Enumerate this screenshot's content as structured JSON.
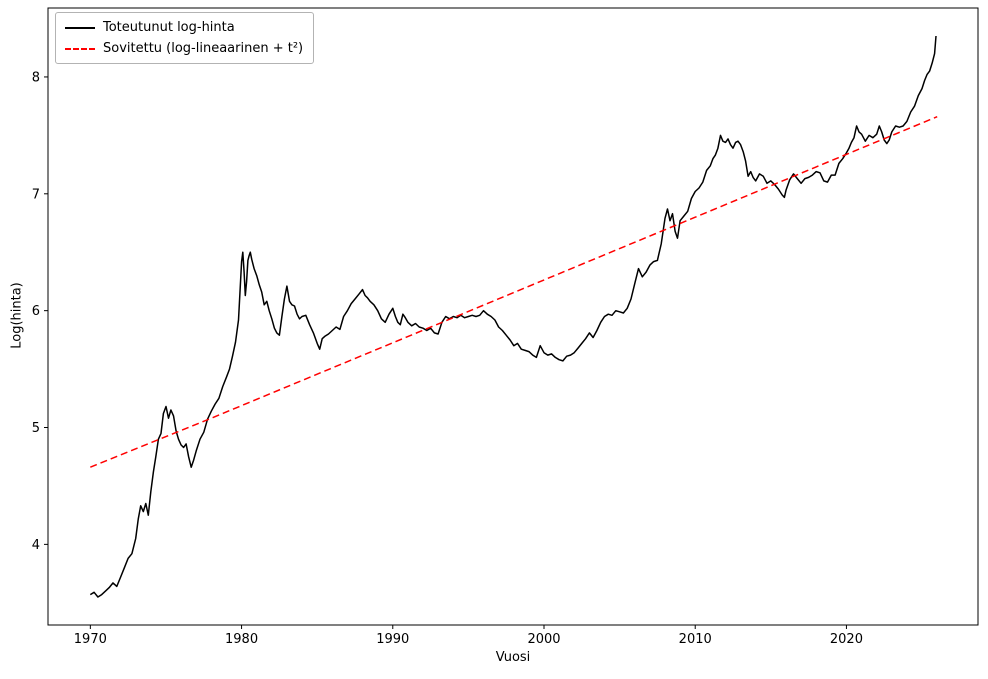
{
  "chart_data": {
    "type": "line",
    "title": "",
    "xlabel": "Vuosi",
    "ylabel": "Log(hinta)",
    "grid": false,
    "legend_position": "upper left",
    "xlim": [
      1967.2,
      2028.7
    ],
    "ylim": [
      3.31,
      8.59
    ],
    "x_ticks": [
      1970,
      1980,
      1990,
      2000,
      2010,
      2020
    ],
    "y_ticks": [
      4,
      5,
      6,
      7,
      8
    ],
    "series": [
      {
        "name": "Toteutunut log-hinta",
        "color": "#000000",
        "linestyle": "solid",
        "points": [
          [
            1970.0,
            3.57
          ],
          [
            1970.25,
            3.59
          ],
          [
            1970.5,
            3.55
          ],
          [
            1970.75,
            3.57
          ],
          [
            1971.0,
            3.6
          ],
          [
            1971.25,
            3.63
          ],
          [
            1971.5,
            3.67
          ],
          [
            1971.75,
            3.64
          ],
          [
            1972.0,
            3.72
          ],
          [
            1972.25,
            3.8
          ],
          [
            1972.5,
            3.88
          ],
          [
            1972.75,
            3.92
          ],
          [
            1973.0,
            4.05
          ],
          [
            1973.17,
            4.22
          ],
          [
            1973.33,
            4.33
          ],
          [
            1973.5,
            4.28
          ],
          [
            1973.67,
            4.35
          ],
          [
            1973.83,
            4.25
          ],
          [
            1974.0,
            4.45
          ],
          [
            1974.17,
            4.62
          ],
          [
            1974.33,
            4.75
          ],
          [
            1974.5,
            4.9
          ],
          [
            1974.67,
            4.95
          ],
          [
            1974.83,
            5.12
          ],
          [
            1975.0,
            5.18
          ],
          [
            1975.17,
            5.08
          ],
          [
            1975.33,
            5.15
          ],
          [
            1975.5,
            5.1
          ],
          [
            1975.67,
            4.97
          ],
          [
            1975.83,
            4.9
          ],
          [
            1976.0,
            4.85
          ],
          [
            1976.17,
            4.83
          ],
          [
            1976.33,
            4.86
          ],
          [
            1976.5,
            4.75
          ],
          [
            1976.67,
            4.66
          ],
          [
            1976.83,
            4.72
          ],
          [
            1977.0,
            4.8
          ],
          [
            1977.25,
            4.9
          ],
          [
            1977.5,
            4.96
          ],
          [
            1977.75,
            5.07
          ],
          [
            1978.0,
            5.14
          ],
          [
            1978.25,
            5.2
          ],
          [
            1978.5,
            5.25
          ],
          [
            1978.75,
            5.35
          ],
          [
            1979.0,
            5.43
          ],
          [
            1979.2,
            5.5
          ],
          [
            1979.4,
            5.61
          ],
          [
            1979.6,
            5.73
          ],
          [
            1979.8,
            5.92
          ],
          [
            1980.0,
            6.42
          ],
          [
            1980.08,
            6.5
          ],
          [
            1980.17,
            6.33
          ],
          [
            1980.25,
            6.13
          ],
          [
            1980.33,
            6.25
          ],
          [
            1980.42,
            6.43
          ],
          [
            1980.5,
            6.47
          ],
          [
            1980.58,
            6.5
          ],
          [
            1980.67,
            6.44
          ],
          [
            1980.75,
            6.4
          ],
          [
            1980.83,
            6.36
          ],
          [
            1981.0,
            6.3
          ],
          [
            1981.17,
            6.22
          ],
          [
            1981.33,
            6.16
          ],
          [
            1981.5,
            6.05
          ],
          [
            1981.67,
            6.08
          ],
          [
            1981.83,
            6.0
          ],
          [
            1982.0,
            5.93
          ],
          [
            1982.17,
            5.85
          ],
          [
            1982.33,
            5.81
          ],
          [
            1982.5,
            5.79
          ],
          [
            1982.67,
            5.95
          ],
          [
            1982.83,
            6.1
          ],
          [
            1983.0,
            6.21
          ],
          [
            1983.17,
            6.08
          ],
          [
            1983.33,
            6.05
          ],
          [
            1983.5,
            6.04
          ],
          [
            1983.67,
            5.97
          ],
          [
            1983.83,
            5.93
          ],
          [
            1984.0,
            5.95
          ],
          [
            1984.25,
            5.96
          ],
          [
            1984.5,
            5.88
          ],
          [
            1984.75,
            5.81
          ],
          [
            1985.0,
            5.72
          ],
          [
            1985.17,
            5.67
          ],
          [
            1985.33,
            5.76
          ],
          [
            1985.5,
            5.78
          ],
          [
            1985.75,
            5.8
          ],
          [
            1986.0,
            5.83
          ],
          [
            1986.25,
            5.86
          ],
          [
            1986.5,
            5.84
          ],
          [
            1986.75,
            5.95
          ],
          [
            1987.0,
            6.0
          ],
          [
            1987.25,
            6.06
          ],
          [
            1987.5,
            6.1
          ],
          [
            1987.75,
            6.14
          ],
          [
            1988.0,
            6.18
          ],
          [
            1988.17,
            6.13
          ],
          [
            1988.33,
            6.11
          ],
          [
            1988.5,
            6.08
          ],
          [
            1988.75,
            6.05
          ],
          [
            1989.0,
            6.0
          ],
          [
            1989.25,
            5.93
          ],
          [
            1989.5,
            5.9
          ],
          [
            1989.75,
            5.97
          ],
          [
            1990.0,
            6.02
          ],
          [
            1990.17,
            5.95
          ],
          [
            1990.33,
            5.9
          ],
          [
            1990.5,
            5.88
          ],
          [
            1990.67,
            5.97
          ],
          [
            1990.83,
            5.94
          ],
          [
            1991.0,
            5.9
          ],
          [
            1991.25,
            5.87
          ],
          [
            1991.5,
            5.89
          ],
          [
            1991.75,
            5.86
          ],
          [
            1992.0,
            5.85
          ],
          [
            1992.25,
            5.83
          ],
          [
            1992.5,
            5.85
          ],
          [
            1992.75,
            5.81
          ],
          [
            1993.0,
            5.8
          ],
          [
            1993.25,
            5.9
          ],
          [
            1993.5,
            5.95
          ],
          [
            1993.75,
            5.93
          ],
          [
            1994.0,
            5.95
          ],
          [
            1994.25,
            5.94
          ],
          [
            1994.5,
            5.96
          ],
          [
            1994.75,
            5.94
          ],
          [
            1995.0,
            5.95
          ],
          [
            1995.25,
            5.96
          ],
          [
            1995.5,
            5.95
          ],
          [
            1995.75,
            5.96
          ],
          [
            1996.0,
            6.0
          ],
          [
            1996.25,
            5.97
          ],
          [
            1996.5,
            5.95
          ],
          [
            1996.75,
            5.92
          ],
          [
            1997.0,
            5.86
          ],
          [
            1997.25,
            5.83
          ],
          [
            1997.5,
            5.79
          ],
          [
            1997.75,
            5.75
          ],
          [
            1998.0,
            5.7
          ],
          [
            1998.25,
            5.72
          ],
          [
            1998.5,
            5.67
          ],
          [
            1998.75,
            5.66
          ],
          [
            1999.0,
            5.65
          ],
          [
            1999.25,
            5.62
          ],
          [
            1999.5,
            5.6
          ],
          [
            1999.75,
            5.7
          ],
          [
            2000.0,
            5.64
          ],
          [
            2000.25,
            5.62
          ],
          [
            2000.5,
            5.63
          ],
          [
            2000.75,
            5.6
          ],
          [
            2001.0,
            5.58
          ],
          [
            2001.25,
            5.57
          ],
          [
            2001.5,
            5.61
          ],
          [
            2001.75,
            5.62
          ],
          [
            2002.0,
            5.64
          ],
          [
            2002.25,
            5.68
          ],
          [
            2002.5,
            5.72
          ],
          [
            2002.75,
            5.76
          ],
          [
            2003.0,
            5.81
          ],
          [
            2003.25,
            5.77
          ],
          [
            2003.5,
            5.83
          ],
          [
            2003.75,
            5.9
          ],
          [
            2004.0,
            5.95
          ],
          [
            2004.25,
            5.97
          ],
          [
            2004.5,
            5.96
          ],
          [
            2004.75,
            6.0
          ],
          [
            2005.0,
            5.99
          ],
          [
            2005.25,
            5.98
          ],
          [
            2005.5,
            6.02
          ],
          [
            2005.75,
            6.1
          ],
          [
            2006.0,
            6.23
          ],
          [
            2006.25,
            6.36
          ],
          [
            2006.5,
            6.29
          ],
          [
            2006.75,
            6.33
          ],
          [
            2007.0,
            6.39
          ],
          [
            2007.25,
            6.42
          ],
          [
            2007.5,
            6.43
          ],
          [
            2007.75,
            6.57
          ],
          [
            2008.0,
            6.79
          ],
          [
            2008.17,
            6.87
          ],
          [
            2008.33,
            6.77
          ],
          [
            2008.5,
            6.83
          ],
          [
            2008.67,
            6.68
          ],
          [
            2008.83,
            6.62
          ],
          [
            2009.0,
            6.77
          ],
          [
            2009.25,
            6.81
          ],
          [
            2009.5,
            6.85
          ],
          [
            2009.75,
            6.96
          ],
          [
            2010.0,
            7.02
          ],
          [
            2010.25,
            7.05
          ],
          [
            2010.5,
            7.1
          ],
          [
            2010.75,
            7.2
          ],
          [
            2011.0,
            7.24
          ],
          [
            2011.17,
            7.3
          ],
          [
            2011.33,
            7.33
          ],
          [
            2011.5,
            7.39
          ],
          [
            2011.67,
            7.5
          ],
          [
            2011.83,
            7.45
          ],
          [
            2012.0,
            7.44
          ],
          [
            2012.17,
            7.47
          ],
          [
            2012.33,
            7.42
          ],
          [
            2012.5,
            7.39
          ],
          [
            2012.67,
            7.44
          ],
          [
            2012.83,
            7.45
          ],
          [
            2013.0,
            7.42
          ],
          [
            2013.17,
            7.36
          ],
          [
            2013.33,
            7.28
          ],
          [
            2013.5,
            7.15
          ],
          [
            2013.67,
            7.19
          ],
          [
            2013.83,
            7.14
          ],
          [
            2014.0,
            7.11
          ],
          [
            2014.25,
            7.17
          ],
          [
            2014.5,
            7.15
          ],
          [
            2014.75,
            7.09
          ],
          [
            2015.0,
            7.11
          ],
          [
            2015.25,
            7.08
          ],
          [
            2015.5,
            7.04
          ],
          [
            2015.75,
            6.99
          ],
          [
            2015.9,
            6.97
          ],
          [
            2016.0,
            7.03
          ],
          [
            2016.25,
            7.12
          ],
          [
            2016.5,
            7.17
          ],
          [
            2016.75,
            7.13
          ],
          [
            2017.0,
            7.09
          ],
          [
            2017.25,
            7.13
          ],
          [
            2017.5,
            7.14
          ],
          [
            2017.75,
            7.16
          ],
          [
            2018.0,
            7.19
          ],
          [
            2018.25,
            7.18
          ],
          [
            2018.5,
            7.11
          ],
          [
            2018.75,
            7.1
          ],
          [
            2019.0,
            7.16
          ],
          [
            2019.25,
            7.16
          ],
          [
            2019.5,
            7.26
          ],
          [
            2019.75,
            7.3
          ],
          [
            2020.0,
            7.35
          ],
          [
            2020.17,
            7.39
          ],
          [
            2020.33,
            7.44
          ],
          [
            2020.5,
            7.48
          ],
          [
            2020.67,
            7.58
          ],
          [
            2020.83,
            7.53
          ],
          [
            2021.0,
            7.51
          ],
          [
            2021.25,
            7.45
          ],
          [
            2021.5,
            7.5
          ],
          [
            2021.75,
            7.48
          ],
          [
            2022.0,
            7.51
          ],
          [
            2022.17,
            7.58
          ],
          [
            2022.33,
            7.53
          ],
          [
            2022.5,
            7.46
          ],
          [
            2022.67,
            7.43
          ],
          [
            2022.83,
            7.46
          ],
          [
            2023.0,
            7.53
          ],
          [
            2023.25,
            7.58
          ],
          [
            2023.5,
            7.57
          ],
          [
            2023.75,
            7.58
          ],
          [
            2024.0,
            7.62
          ],
          [
            2024.25,
            7.7
          ],
          [
            2024.5,
            7.75
          ],
          [
            2024.75,
            7.84
          ],
          [
            2025.0,
            7.9
          ],
          [
            2025.17,
            7.97
          ],
          [
            2025.33,
            8.02
          ],
          [
            2025.5,
            8.05
          ],
          [
            2025.67,
            8.12
          ],
          [
            2025.83,
            8.2
          ],
          [
            2025.92,
            8.35
          ]
        ]
      },
      {
        "name": "Sovitettu (log-lineaarinen + t²)",
        "color": "#ff0000",
        "linestyle": "dashed",
        "points": [
          [
            1970.0,
            4.66
          ],
          [
            1978.0,
            5.08
          ],
          [
            1986.0,
            5.51
          ],
          [
            1994.0,
            5.94
          ],
          [
            2002.0,
            6.37
          ],
          [
            2010.0,
            6.8
          ],
          [
            2018.0,
            7.23
          ],
          [
            2026.0,
            7.66
          ]
        ]
      }
    ]
  }
}
